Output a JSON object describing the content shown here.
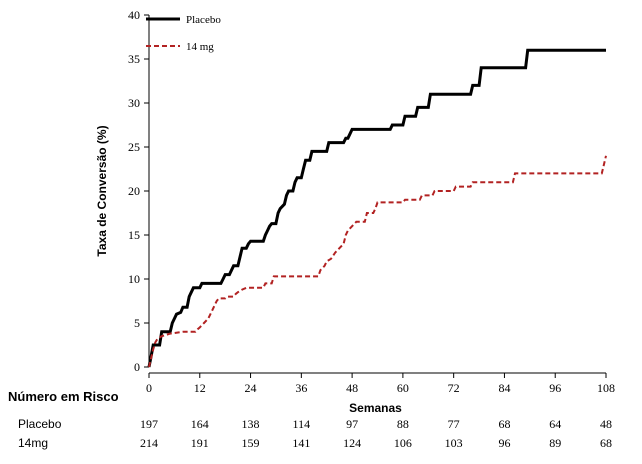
{
  "chart_data": {
    "type": "line",
    "title": "",
    "xlabel": "Semanas",
    "ylabel": "Taxa de Conversão (%)",
    "xlim": [
      0,
      108
    ],
    "ylim": [
      0,
      40
    ],
    "xticks": [
      0,
      12,
      24,
      36,
      48,
      60,
      72,
      84,
      96,
      108
    ],
    "yticks": [
      0,
      5,
      10,
      15,
      20,
      25,
      30,
      35,
      40
    ],
    "legend": "top-left",
    "series": [
      {
        "name": "Placebo",
        "color": "#000000",
        "style": "solid",
        "points": [
          [
            0,
            0
          ],
          [
            0.5,
            1.2
          ],
          [
            1,
            2.5
          ],
          [
            2.5,
            2.5
          ],
          [
            3,
            4
          ],
          [
            5,
            4
          ],
          [
            5.5,
            5
          ],
          [
            6,
            5.5
          ],
          [
            6.5,
            6
          ],
          [
            7.5,
            6.2
          ],
          [
            8,
            6.8
          ],
          [
            9,
            6.8
          ],
          [
            9.5,
            8
          ],
          [
            10,
            8.5
          ],
          [
            10.5,
            9
          ],
          [
            12,
            9
          ],
          [
            12.5,
            9.5
          ],
          [
            17,
            9.5
          ],
          [
            17.5,
            10
          ],
          [
            18,
            10.5
          ],
          [
            19,
            10.5
          ],
          [
            19.5,
            11
          ],
          [
            20,
            11.5
          ],
          [
            21,
            11.5
          ],
          [
            21.5,
            12.5
          ],
          [
            22,
            13.5
          ],
          [
            23,
            13.5
          ],
          [
            23.5,
            14
          ],
          [
            24,
            14.3
          ],
          [
            27,
            14.3
          ],
          [
            27.5,
            15
          ],
          [
            28,
            15.5
          ],
          [
            28.5,
            16
          ],
          [
            29,
            16.3
          ],
          [
            30,
            16.3
          ],
          [
            30.5,
            17.5
          ],
          [
            31,
            18
          ],
          [
            32,
            18.5
          ],
          [
            32.5,
            19.5
          ],
          [
            33,
            20
          ],
          [
            34,
            20
          ],
          [
            34.5,
            21
          ],
          [
            35,
            21.5
          ],
          [
            36,
            21.5
          ],
          [
            36.5,
            22.5
          ],
          [
            37,
            23.5
          ],
          [
            38,
            23.5
          ],
          [
            38.5,
            24.5
          ],
          [
            41,
            24.5
          ],
          [
            42,
            24.5
          ],
          [
            42.5,
            25.5
          ],
          [
            43,
            25.5
          ],
          [
            46,
            25.5
          ],
          [
            46.5,
            26
          ],
          [
            47,
            26
          ],
          [
            47.5,
            26.5
          ],
          [
            48,
            27
          ],
          [
            57,
            27
          ],
          [
            57.5,
            27.5
          ],
          [
            60,
            27.5
          ],
          [
            60.5,
            28.5
          ],
          [
            63,
            28.5
          ],
          [
            63.5,
            29.5
          ],
          [
            66,
            29.5
          ],
          [
            66.5,
            31
          ],
          [
            76,
            31
          ],
          [
            76.5,
            32
          ],
          [
            78,
            32
          ],
          [
            78.5,
            34
          ],
          [
            89,
            34
          ],
          [
            89.5,
            36
          ],
          [
            108,
            36
          ]
        ]
      },
      {
        "name": "14 mg",
        "color": "#b22222",
        "style": "dashed",
        "points": [
          [
            0,
            0
          ],
          [
            0.5,
            1
          ],
          [
            1,
            2
          ],
          [
            1.5,
            2.8
          ],
          [
            2,
            3.2
          ],
          [
            3,
            3.5
          ],
          [
            5,
            3.8
          ],
          [
            8,
            4
          ],
          [
            11,
            4
          ],
          [
            11.5,
            4.3
          ],
          [
            12,
            4.5
          ],
          [
            13,
            5
          ],
          [
            14,
            5.5
          ],
          [
            14.5,
            6
          ],
          [
            15,
            6.5
          ],
          [
            15.5,
            7
          ],
          [
            16,
            7.5
          ],
          [
            16.5,
            7.8
          ],
          [
            18,
            7.8
          ],
          [
            18.5,
            8
          ],
          [
            20,
            8
          ],
          [
            20.5,
            8.3
          ],
          [
            21,
            8.5
          ],
          [
            22,
            8.8
          ],
          [
            23,
            9
          ],
          [
            27,
            9
          ],
          [
            27.5,
            9.5
          ],
          [
            29,
            9.5
          ],
          [
            29.5,
            10.3
          ],
          [
            40,
            10.3
          ],
          [
            40.5,
            11
          ],
          [
            41.5,
            11.5
          ],
          [
            42,
            12
          ],
          [
            43,
            12.3
          ],
          [
            44,
            13
          ],
          [
            45,
            13.5
          ],
          [
            46,
            14
          ],
          [
            46.5,
            15
          ],
          [
            47,
            15.5
          ],
          [
            48,
            16
          ],
          [
            49,
            16.5
          ],
          [
            51,
            16.5
          ],
          [
            51.5,
            17.5
          ],
          [
            53,
            17.5
          ],
          [
            53.5,
            18
          ],
          [
            54,
            18.7
          ],
          [
            60,
            18.7
          ],
          [
            60.5,
            19
          ],
          [
            64,
            19
          ],
          [
            64.5,
            19.5
          ],
          [
            67,
            19.5
          ],
          [
            67.5,
            20
          ],
          [
            72,
            20
          ],
          [
            72.5,
            20.5
          ],
          [
            76,
            20.5
          ],
          [
            76.5,
            21
          ],
          [
            86,
            21
          ],
          [
            86.5,
            22
          ],
          [
            107,
            22
          ],
          [
            107.5,
            23
          ],
          [
            108,
            24
          ]
        ]
      }
    ],
    "risk_table": {
      "title": "Número em Risco",
      "weeks": [
        0,
        12,
        24,
        36,
        48,
        60,
        72,
        84,
        96,
        108
      ],
      "rows": [
        {
          "label": "Placebo",
          "values": [
            197,
            164,
            138,
            114,
            97,
            88,
            77,
            68,
            64,
            48
          ]
        },
        {
          "label": "14mg",
          "values": [
            214,
            191,
            159,
            141,
            124,
            106,
            103,
            96,
            89,
            68
          ]
        }
      ]
    }
  }
}
